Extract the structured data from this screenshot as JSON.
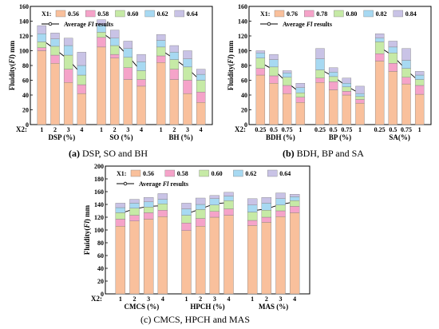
{
  "captions": {
    "a": {
      "letter": "(a)",
      "text": " DSP, SO and BH"
    },
    "b": {
      "letter": "(b)",
      "text": " BDH, BP and SA"
    },
    "c": {
      "letter": "(c)",
      "text": " CMCS, HPCH and MAS"
    }
  },
  "chart_data": [
    {
      "id": "a",
      "type": "bar",
      "stacked": true,
      "ylabel_main": "Fluidity(",
      "ylabel_em": "Fl",
      "ylabel_tail": ")  mm",
      "ylim": [
        0,
        160
      ],
      "yticks": [
        0,
        20,
        40,
        60,
        80,
        100,
        120,
        140,
        160
      ],
      "x2_label": "X2:",
      "legend": {
        "title": "X1:",
        "line_label_main": "Average ",
        "line_label_em": "Fl",
        "line_label_tail": " results"
      },
      "colors": [
        "#f9c09c",
        "#f5a3c9",
        "#c6eaa6",
        "#a7d9f2",
        "#c9c3e6"
      ],
      "series_names": [
        "0.56",
        "0.58",
        "0.60",
        "0.62",
        "0.64"
      ],
      "groups": [
        {
          "label": "DSP (%)",
          "categories": [
            "1",
            "2",
            "3",
            "4"
          ],
          "stacks": [
            [
              100,
              4,
              8,
              11,
              11
            ],
            [
              83,
              11,
              12,
              10,
              8
            ],
            [
              57,
              18,
              19,
              13,
              10
            ],
            [
              42,
              12,
              13,
              13,
              18
            ]
          ],
          "average": [
            115,
            102,
            88,
            68
          ]
        },
        {
          "label": "SO (%)",
          "categories": [
            "1",
            "2",
            "3",
            "4"
          ],
          "stacks": [
            [
              105,
              13,
              7,
              10,
              7
            ],
            [
              90,
              5,
              12,
              10,
              11
            ],
            [
              61,
              16,
              14,
              12,
              10
            ],
            [
              52,
              9,
              12,
              12,
              10
            ]
          ],
          "average": [
            125,
            112,
            93,
            72
          ]
        },
        {
          "label": "BH (%)",
          "categories": [
            "1",
            "2",
            "3",
            "4"
          ],
          "stacks": [
            [
              84,
              9,
              12,
              9,
              8
            ],
            [
              61,
              14,
              13,
              10,
              9
            ],
            [
              42,
              18,
              18,
              11,
              11
            ],
            [
              30,
              14,
              16,
              8,
              7
            ]
          ],
          "average": [
            101,
            89,
            76,
            59
          ]
        }
      ]
    },
    {
      "id": "b",
      "type": "bar",
      "stacked": true,
      "ylabel_main": "Fluidity(",
      "ylabel_em": "Fl",
      "ylabel_tail": ")  mm",
      "ylim": [
        0,
        160
      ],
      "yticks": [
        0,
        20,
        40,
        60,
        80,
        100,
        120,
        140,
        160
      ],
      "x2_label": "X2:",
      "legend": {
        "title": "X1:",
        "line_label_main": "Average ",
        "line_label_em": "Fl",
        "line_label_tail": " results"
      },
      "colors": [
        "#f9c09c",
        "#f5a3c9",
        "#c6eaa6",
        "#a7d9f2",
        "#c9c3e6"
      ],
      "series_names": [
        "0.76",
        "0.78",
        "0.80",
        "0.82",
        "0.84"
      ],
      "groups": [
        {
          "label": "BDH (%)",
          "categories": [
            "0.25",
            "0.5",
            "0.75",
            "1"
          ],
          "stacks": [
            [
              67,
              9,
              14,
              7,
              3
            ],
            [
              56,
              10,
              12,
              10,
              7
            ],
            [
              42,
              11,
              11,
              6,
              3
            ],
            [
              30,
              7,
              6,
              7,
              6
            ]
          ],
          "average": [
            84,
            74,
            57,
            43
          ]
        },
        {
          "label": "BP (%)",
          "categories": [
            "0.25",
            "0.5",
            "0.75",
            "1"
          ],
          "stacks": [
            [
              57,
              6,
              11,
              15,
              14
            ],
            [
              47,
              11,
              7,
              6,
              6
            ],
            [
              40,
              5,
              6,
              5,
              7
            ],
            [
              29,
              5,
              4,
              4,
              10
            ]
          ],
          "average": [
            75,
            65,
            52,
            42
          ]
        },
        {
          "label": "SA(%)",
          "categories": [
            "0.25",
            "0.5",
            "0.75",
            "1"
          ],
          "stacks": [
            [
              86,
              10,
              16,
              5,
              6
            ],
            [
              72,
              11,
              14,
              8,
              8
            ],
            [
              55,
              9,
              12,
              11,
              16
            ],
            [
              41,
              12,
              8,
              6,
              5
            ]
          ],
          "average": [
            105,
            93,
            74,
            58
          ]
        }
      ]
    },
    {
      "id": "c",
      "type": "bar",
      "stacked": true,
      "ylabel_main": "Fluidity(",
      "ylabel_em": "Fl",
      "ylabel_tail": ")  mm",
      "ylim": [
        0,
        200
      ],
      "yticks": [
        0,
        20,
        40,
        60,
        80,
        100,
        120,
        140,
        160,
        180,
        200
      ],
      "x2_label": "X2:",
      "legend": {
        "title": "X1:",
        "line_label_main": "Average ",
        "line_label_em": "Fl",
        "line_label_tail": " results"
      },
      "colors": [
        "#f9c09c",
        "#f5a3c9",
        "#c6eaa6",
        "#a7d9f2",
        "#c9c3e6"
      ],
      "series_names": [
        "0.56",
        "0.58",
        "0.60",
        "0.62",
        "0.64"
      ],
      "groups": [
        {
          "label": "CMCS (%)",
          "categories": [
            "1",
            "2",
            "3",
            "4"
          ],
          "stacks": [
            [
              106,
              11,
              10,
              8,
              7
            ],
            [
              114,
              9,
              11,
              8,
              6
            ],
            [
              117,
              10,
              9,
              8,
              7
            ],
            [
              121,
              10,
              10,
              7,
              9
            ]
          ],
          "average": [
            126,
            133,
            137,
            138
          ]
        },
        {
          "label": "HPCH (%)",
          "categories": [
            "1",
            "2",
            "3",
            "4"
          ],
          "stacks": [
            [
              99,
              12,
              12,
              10,
              9
            ],
            [
              106,
              12,
              14,
              8,
              10
            ],
            [
              120,
              9,
              10,
              10,
              5
            ],
            [
              123,
              10,
              13,
              7,
              6
            ]
          ],
          "average": [
            125,
            133,
            141,
            143
          ]
        },
        {
          "label": "MAS (%)",
          "categories": [
            "1",
            "2",
            "3",
            "4"
          ],
          "stacks": [
            [
              107,
              8,
              13,
              11,
              10
            ],
            [
              112,
              8,
              11,
              11,
              9
            ],
            [
              121,
              9,
              9,
              10,
              9
            ],
            [
              127,
              10,
              9,
              6,
              4
            ]
          ],
          "average": [
            130,
            133,
            140,
            144
          ]
        }
      ]
    }
  ]
}
